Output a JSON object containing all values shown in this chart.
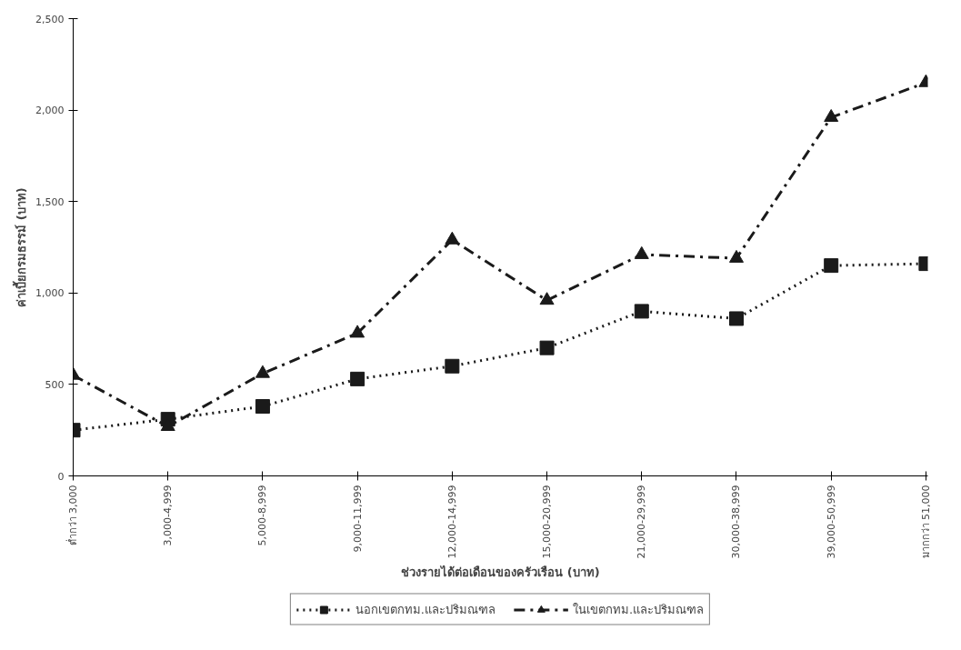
{
  "chart_data": {
    "type": "line",
    "xlabel": "ช่วงรายได้ต่อเดือนของครัวเรือน (บาท)",
    "ylabel": "ค่าเบี้ยกรมธรรม์ (บาท)",
    "categories": [
      "ต่ำกว่า 3,000",
      "3,000-4,999",
      "5,000-8,999",
      "9,000-11,999",
      "12,000-14,999",
      "15,000-20,999",
      "21,000-29,999",
      "30,000-38,999",
      "39,000-50,999",
      "มากกว่า 51,000"
    ],
    "series": [
      {
        "name": "นอกเขตกทม.และปริมณฑล",
        "color": "#1a1a1a",
        "marker": "square",
        "line_style": "dotted",
        "values": [
          250,
          310,
          380,
          530,
          600,
          700,
          900,
          860,
          1150,
          1160
        ]
      },
      {
        "name": "ในเขตกทม.และปริมณฑล",
        "color": "#1a1a1a",
        "marker": "triangle",
        "line_style": "dashdot",
        "values": [
          550,
          270,
          560,
          780,
          1290,
          960,
          1210,
          1190,
          1960,
          2150
        ]
      }
    ],
    "ylim": [
      0,
      2500
    ],
    "yticks": [
      {
        "value": 0,
        "label": "0"
      },
      {
        "value": 500,
        "label": "500"
      },
      {
        "value": 1000,
        "label": "1,000"
      },
      {
        "value": 1500,
        "label": "1,500"
      },
      {
        "value": 2000,
        "label": "2,000"
      },
      {
        "value": 2500,
        "label": "2,500"
      }
    ],
    "grid": false,
    "legend": "bottom"
  }
}
